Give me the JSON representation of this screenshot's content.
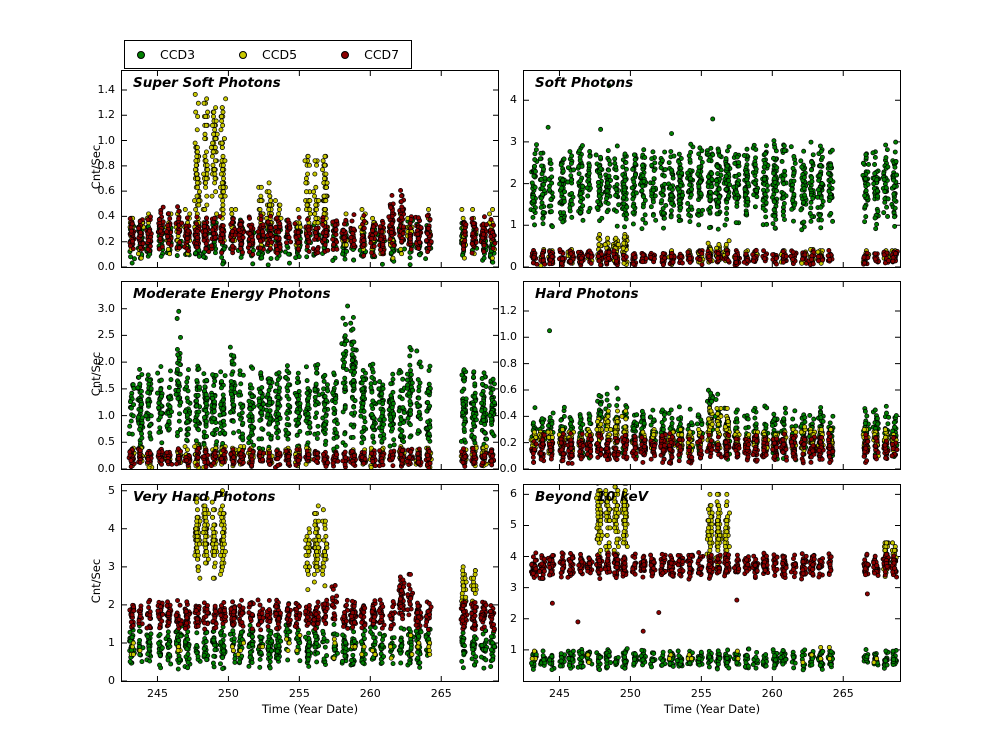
{
  "chart_data": {
    "type": "scatter",
    "xlabel": "Time (Year Date)",
    "ylabel": "Cnt/Sec",
    "xlim": [
      242.5,
      269.0
    ],
    "xticks": [
      "245",
      "250",
      "255",
      "260",
      "265"
    ],
    "series": [
      {
        "name": "CCD3",
        "color": "#008000"
      },
      {
        "name": "CCD5",
        "color": "#c8c800"
      },
      {
        "name": "CCD7",
        "color": "#8b0000"
      }
    ],
    "cluster_x": [
      243.2,
      243.8,
      244.4,
      245.2,
      245.8,
      246.5,
      247.1,
      247.8,
      248.4,
      249.0,
      249.6,
      250.3,
      250.9,
      251.6,
      252.3,
      252.9,
      253.5,
      254.2,
      254.9,
      255.6,
      256.2,
      256.8,
      257.5,
      258.2,
      258.8,
      259.5,
      260.2,
      260.8,
      261.5,
      262.2,
      262.8,
      263.4,
      264.1,
      266.6,
      267.3,
      268.0,
      268.6
    ],
    "panels": [
      {
        "title": "Super Soft Photons",
        "ylim": [
          0,
          1.55
        ],
        "yticks": [
          "0.0",
          "0.2",
          "0.4",
          "0.6",
          "0.8",
          "1.0",
          "1.2",
          "1.4"
        ],
        "series": [
          {
            "n": 18,
            "y": [
              0.01,
              0.38
            ]
          },
          {
            "n": 12,
            "y": [
              0.05,
              0.5
            ],
            "skip": 0.3,
            "quantize": 0.035,
            "spikes": [
              {
                "x": [
                  247.7,
                  249.7
                ],
                "y": [
                  0.15,
                  1.45
                ],
                "n": 42
              },
              {
                "x": [
                  252.2,
                  253.8
                ],
                "y": [
                  0.1,
                  0.72
                ],
                "n": 26
              },
              {
                "x": [
                  255.5,
                  257.1
                ],
                "y": [
                  0.15,
                  1.0
                ],
                "n": 34
              }
            ]
          },
          {
            "n": 22,
            "y": [
              0.08,
              0.42
            ],
            "spikes": [
              {
                "x": [
                  245.0,
                  246.7
                ],
                "y": [
                  0.12,
                  0.5
                ],
                "n": 26
              },
              {
                "x": [
                  261.5,
                  262.6
                ],
                "y": [
                  0.1,
                  0.62
                ],
                "n": 26
              }
            ]
          }
        ]
      },
      {
        "title": "Soft Photons",
        "ylim": [
          0,
          4.7
        ],
        "yticks": [
          "0",
          "1",
          "2",
          "3",
          "4"
        ],
        "series": [
          {
            "n": 36,
            "y": [
              0.85,
              3.05
            ],
            "outliers": [
              [
                248.5,
                4.35
              ],
              [
                244.2,
                3.35
              ],
              [
                255.8,
                3.55
              ],
              [
                252.9,
                3.2
              ],
              [
                247.9,
                3.3
              ]
            ]
          },
          {
            "n": 13,
            "y": [
              0.02,
              0.45
            ],
            "skip": 0.25,
            "quantize": 0.03,
            "spikes": [
              {
                "x": [
                  247.7,
                  249.7
                ],
                "y": [
                  0.05,
                  0.85
                ],
                "n": 30
              },
              {
                "x": [
                  255.5,
                  257.1
                ],
                "y": [
                  0.05,
                  0.7
                ],
                "n": 26
              }
            ]
          },
          {
            "n": 14,
            "y": [
              0.02,
              0.42
            ]
          }
        ]
      },
      {
        "title": "Moderate Energy Photons",
        "ylim": [
          0,
          3.5
        ],
        "yticks": [
          "0.0",
          "0.5",
          "1.0",
          "1.5",
          "2.0",
          "2.5",
          "3.0"
        ],
        "series": [
          {
            "n": 34,
            "y": [
              0.25,
              2.0
            ],
            "spikes": [
              {
                "x": [
                  246.2,
                  246.9
                ],
                "y": [
                  0.4,
                  2.9
                ],
                "n": 40
              },
              {
                "x": [
                  249.9,
                  250.6
                ],
                "y": [
                  0.4,
                  2.6
                ],
                "n": 38
              },
              {
                "x": [
                  255.9,
                  256.6
                ],
                "y": [
                  0.4,
                  2.45
                ],
                "n": 36
              },
              {
                "x": [
                  258.1,
                  259.3
                ],
                "y": [
                  0.4,
                  3.0
                ],
                "n": 40
              },
              {
                "x": [
                  262.5,
                  263.6
                ],
                "y": [
                  0.4,
                  2.4
                ],
                "n": 36
              }
            ],
            "outliers": [
              [
                246.5,
                2.95
              ],
              [
                258.4,
                3.05
              ]
            ]
          },
          {
            "n": 15,
            "y": [
              0.02,
              0.45
            ],
            "skip": 0.2,
            "quantize": 0.03
          },
          {
            "n": 16,
            "y": [
              0.02,
              0.4
            ]
          }
        ]
      },
      {
        "title": "Hard Photons",
        "ylim": [
          0,
          1.42
        ],
        "yticks": [
          "0.0",
          "0.2",
          "0.4",
          "0.6",
          "0.8",
          "1.0",
          "1.2"
        ],
        "series": [
          {
            "n": 22,
            "y": [
              0.05,
              0.5
            ],
            "spikes": [
              {
                "x": [
                  247.7,
                  249.0
                ],
                "y": [
                  0.08,
                  0.65
                ],
                "n": 26
              },
              {
                "x": [
                  255.5,
                  256.4
                ],
                "y": [
                  0.1,
                  0.7
                ],
                "n": 24
              }
            ],
            "outliers": [
              [
                244.3,
                1.05
              ]
            ]
          },
          {
            "n": 17,
            "y": [
              0.1,
              0.32
            ],
            "quantize": 0.02,
            "spikes": [
              {
                "x": [
                  247.7,
                  249.7
                ],
                "y": [
                  0.1,
                  0.45
                ],
                "n": 24
              },
              {
                "x": [
                  255.5,
                  257.1
                ],
                "y": [
                  0.12,
                  0.5
                ],
                "n": 22
              }
            ]
          },
          {
            "n": 18,
            "y": [
              0.03,
              0.28
            ]
          }
        ]
      },
      {
        "title": "Very Hard Photons",
        "ylim": [
          0,
          5.15
        ],
        "yticks": [
          "0",
          "1",
          "2",
          "3",
          "4",
          "5"
        ],
        "series": [
          {
            "n": 20,
            "y": [
              0.3,
              1.5
            ],
            "spikes": [
              {
                "x": [
                  253.9,
                  254.7
                ],
                "y": [
                  0.4,
                  2.1
                ],
                "n": 24
              }
            ]
          },
          {
            "n": 3,
            "y": [
              0.5,
              1.3
            ],
            "skip": 0.5,
            "quantize": 0.1,
            "spikes": [
              {
                "x": [
                  247.7,
                  249.7
                ],
                "y": [
                  2.6,
                  5.05
                ],
                "n": 44
              },
              {
                "x": [
                  255.4,
                  257.0
                ],
                "y": [
                  2.35,
                  4.65
                ],
                "n": 40
              },
              {
                "x": [
                  266.3,
                  267.4
                ],
                "y": [
                  1.8,
                  3.1
                ],
                "n": 28
              }
            ]
          },
          {
            "n": 24,
            "y": [
              1.3,
              2.15
            ],
            "spikes": [
              {
                "x": [
                  243.9,
                  244.6
                ],
                "y": [
                  1.2,
                  2.3
                ],
                "n": 26
              },
              {
                "x": [
                  257.4,
                  258.0
                ],
                "y": [
                  1.4,
                  2.6
                ],
                "n": 24
              },
              {
                "x": [
                  261.9,
                  263.2
                ],
                "y": [
                  1.4,
                  2.9
                ],
                "n": 30
              }
            ]
          }
        ]
      },
      {
        "title": "Beyond 10 keV",
        "ylim": [
          0,
          6.3
        ],
        "yticks": [
          "1",
          "2",
          "3",
          "4",
          "5",
          "6"
        ],
        "series": [
          {
            "n": 16,
            "y": [
              0.35,
              1.05
            ]
          },
          {
            "n": 2,
            "y": [
              0.5,
              1.1
            ],
            "skip": 0.6,
            "quantize": 0.12,
            "spikes": [
              {
                "x": [
                  247.7,
                  249.7
                ],
                "y": [
                  3.9,
                  6.6
                ],
                "n": 46
              },
              {
                "x": [
                  255.4,
                  257.0
                ],
                "y": [
                  3.5,
                  6.15
                ],
                "n": 42
              },
              {
                "x": [
                  267.7,
                  268.7
                ],
                "y": [
                  3.3,
                  4.6
                ],
                "n": 26
              }
            ]
          },
          {
            "n": 24,
            "y": [
              3.25,
              4.15
            ],
            "outliers": [
              [
                244.5,
                2.5
              ],
              [
                252.0,
                2.2
              ],
              [
                257.5,
                2.6
              ],
              [
                250.9,
                1.6
              ],
              [
                266.7,
                2.8
              ],
              [
                246.3,
                1.9
              ]
            ]
          }
        ]
      }
    ]
  }
}
